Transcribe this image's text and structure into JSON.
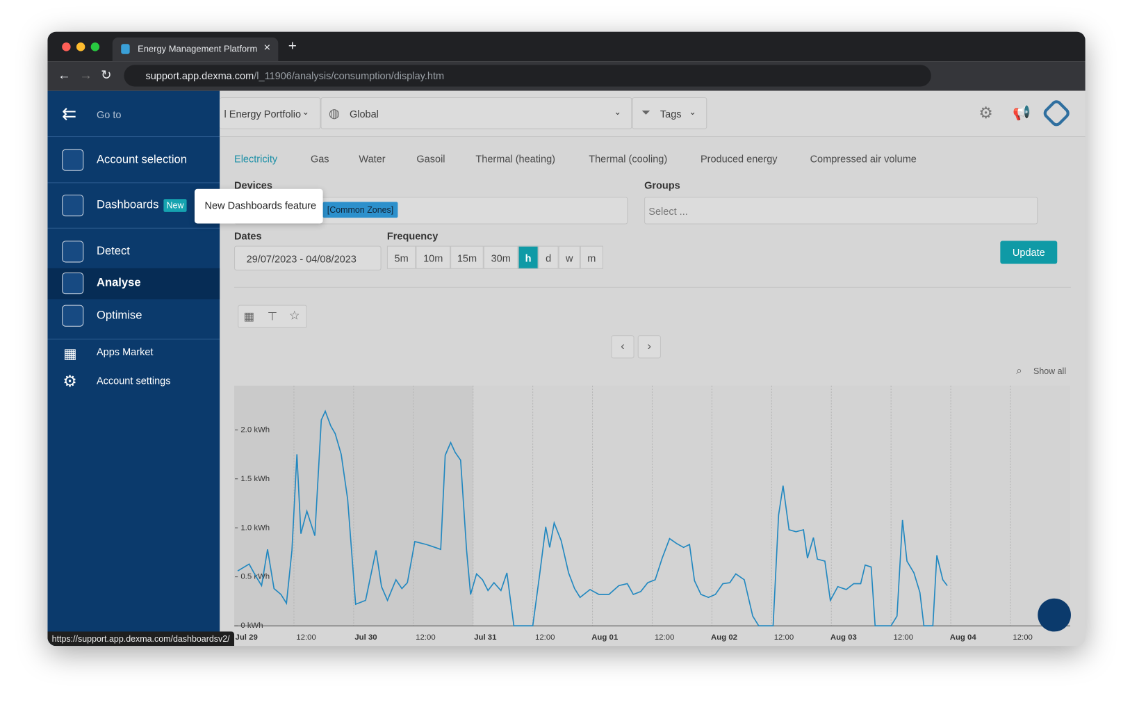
{
  "browser": {
    "tab_title": "Energy Management Platform",
    "url_host": "support.app.dexma.com",
    "url_path": "/l_11906/analysis/consumption/display.htm",
    "status_url": "https://support.app.dexma.com/dashboardsv2/"
  },
  "sidebar": {
    "goto": "Go to",
    "items": [
      "Account selection",
      "Dashboards",
      "Detect",
      "Analyse",
      "Optimise",
      "Apps Market",
      "Account settings"
    ],
    "new_badge": "New",
    "tooltip": "New Dashboards feature"
  },
  "topbar": {
    "portfolio": "l Energy Portfolio",
    "location": "Global",
    "tags": "Tags"
  },
  "energy_tabs": [
    "Electricity",
    "Gas",
    "Water",
    "Gasoil",
    "Thermal (heating)",
    "Thermal (cooling)",
    "Produced energy",
    "Compressed air volume"
  ],
  "filters": {
    "devices_label": "Devices",
    "device_chip": "[Common Zones]",
    "groups_label": "Groups",
    "groups_placeholder": "Select ...",
    "dates_label": "Dates",
    "dates_value": "29/07/2023 - 04/08/2023",
    "frequency_label": "Frequency",
    "frequency_options": [
      "5m",
      "10m",
      "15m",
      "30m",
      "h",
      "d",
      "w",
      "m"
    ],
    "update": "Update"
  },
  "chart_data": {
    "type": "line",
    "show_all": "Show all",
    "x": [
      0.7,
      3,
      4.3,
      5.5,
      6.7,
      8,
      9.4,
      10.5,
      11.6,
      12.6,
      13.4,
      14.6,
      16.2,
      17.5,
      18.3,
      19.4,
      20.3,
      21.5,
      22.8,
      24.4,
      26.4,
      28.5,
      29.6,
      30.8,
      32.5,
      33.7,
      34.8,
      36.3,
      38.6,
      39.8,
      41.5,
      42.4,
      43.5,
      44.4,
      45.5,
      46.7,
      47.5,
      48.7,
      49.9,
      51,
      52.2,
      53.6,
      54.8,
      56.2,
      60,
      61.4,
      62.6,
      63.4,
      64.3,
      65.7,
      67.2,
      68.4,
      69.5,
      71.5,
      73.3,
      75.3,
      77.3,
      79,
      80.2,
      81.7,
      83.1,
      84.6,
      86,
      87.5,
      88.9,
      90.3,
      91.5,
      92.5,
      93.8,
      95.3,
      96.7,
      98.2,
      99.6,
      100.8,
      102.5,
      104.2,
      105.4,
      108.3,
      109.4,
      110.3,
      111.5,
      112.9,
      114.4,
      115.2,
      116.4,
      117.2,
      118.7,
      119.8,
      121.3,
      123,
      124.5,
      125.9,
      126.8,
      128,
      128.8,
      132,
      133.2,
      134.3,
      135.2,
      136.6,
      137.8,
      138.6,
      140.4,
      141.2,
      142.4,
      143.3
    ],
    "series": [
      {
        "color": "#2288c0",
        "values": [
          0.56,
          0.63,
          0.51,
          0.41,
          0.78,
          0.38,
          0.32,
          0.23,
          0.77,
          1.75,
          0.94,
          1.17,
          0.92,
          2.1,
          2.19,
          2.04,
          1.96,
          1.75,
          1.29,
          0.22,
          0.26,
          0.77,
          0.4,
          0.26,
          0.47,
          0.38,
          0.44,
          0.86,
          0.83,
          0.81,
          0.78,
          1.74,
          1.87,
          1.77,
          1.69,
          0.77,
          0.32,
          0.53,
          0.47,
          0.36,
          0.44,
          0.36,
          0.54,
          0,
          0,
          0.53,
          1.01,
          0.8,
          1.05,
          0.87,
          0.54,
          0.38,
          0.29,
          0.37,
          0.32,
          0.32,
          0.41,
          0.43,
          0.32,
          0.35,
          0.44,
          0.47,
          0.69,
          0.89,
          0.84,
          0.8,
          0.83,
          0.46,
          0.32,
          0.29,
          0.32,
          0.43,
          0.44,
          0.53,
          0.47,
          0.1,
          0,
          0,
          1.13,
          1.43,
          0.98,
          0.96,
          0.98,
          0.69,
          0.9,
          0.68,
          0.66,
          0.26,
          0.4,
          0.37,
          0.43,
          0.43,
          0.62,
          0.6,
          0,
          0,
          0.1,
          1.08,
          0.66,
          0.54,
          0.34,
          0,
          0,
          0.72,
          0.47,
          0.41
        ]
      }
    ],
    "xlim": [
      0,
      168
    ],
    "xticks": [
      {
        "value": 0,
        "label": "Jul 29"
      },
      {
        "value": 12,
        "label": "12:00"
      },
      {
        "value": 24,
        "label": "Jul 30"
      },
      {
        "value": 36,
        "label": "12:00"
      },
      {
        "value": 48,
        "label": "Jul 31"
      },
      {
        "value": 60,
        "label": "12:00"
      },
      {
        "value": 72,
        "label": "Aug 01"
      },
      {
        "value": 84,
        "label": "12:00"
      },
      {
        "value": 96,
        "label": "Aug 02"
      },
      {
        "value": 108,
        "label": "12:00"
      },
      {
        "value": 120,
        "label": "Aug 03"
      },
      {
        "value": 132,
        "label": "12:00"
      },
      {
        "value": 144,
        "label": "Aug 04"
      },
      {
        "value": 156,
        "label": "12:00"
      }
    ],
    "ylim": [
      0,
      2.45
    ],
    "yticks": [
      {
        "value": 0,
        "label": "0 kWh"
      },
      {
        "value": 0.5,
        "label": "0.5 kWh"
      },
      {
        "value": 1,
        "label": "1.0 kWh"
      },
      {
        "value": 1.5,
        "label": "1.5 kWh"
      },
      {
        "value": 2,
        "label": "2.0 kWh"
      }
    ]
  }
}
